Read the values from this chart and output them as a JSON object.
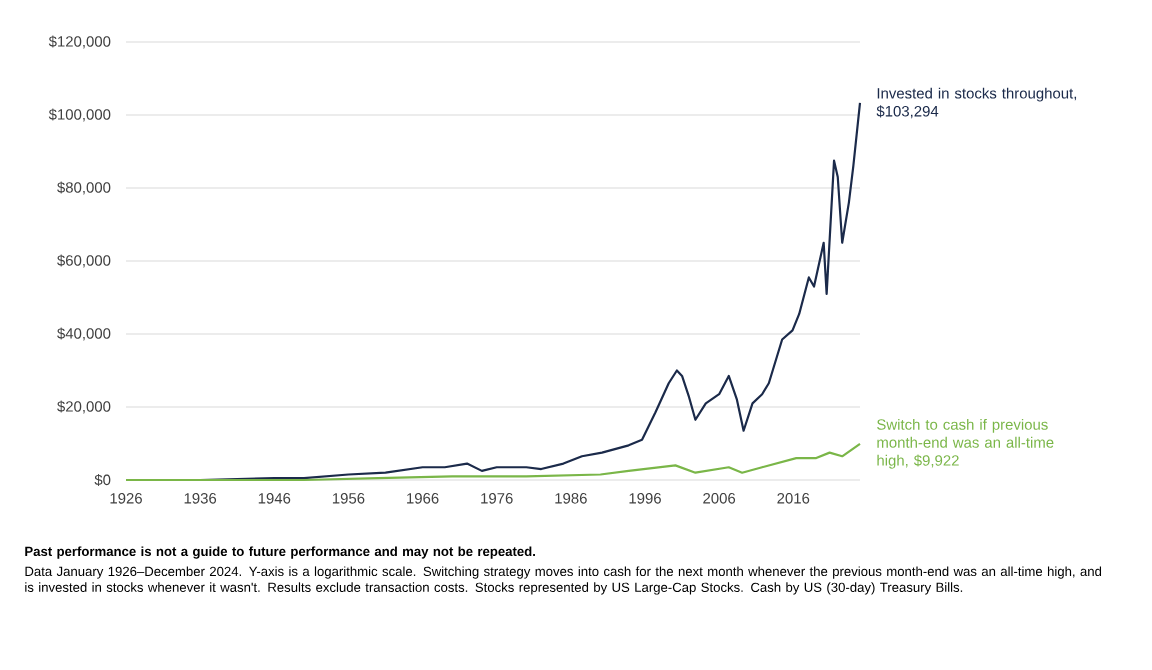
{
  "chart_data": {
    "type": "line",
    "series": [
      {
        "color": "#1b2a4a",
        "x": [
          1926,
          1936,
          1946,
          1950,
          1956,
          1961,
          1966,
          1969,
          1972,
          1974,
          1976,
          1980,
          1982,
          1985,
          1987.5,
          1990.2,
          1993.8,
          1995.6,
          1997.4,
          1999.2,
          2000.3,
          2001,
          2001.9,
          2002.8,
          2004.2,
          2006,
          2007.3,
          2008.4,
          2009.3,
          2010.5,
          2011.8,
          2012.7,
          2014.5,
          2015.9,
          2016.8,
          2018.1,
          2018.8,
          2020.1,
          2020.5,
          2021.5,
          2022,
          2022.6,
          2023.5,
          2024.1,
          2025
        ],
        "values": [
          0,
          0,
          500,
          500,
          1500,
          2000,
          3500,
          3500,
          4500,
          2500,
          3500,
          3500,
          3000,
          4500,
          6500,
          7500,
          9500,
          11000,
          18500,
          26500,
          30000,
          28500,
          23000,
          16500,
          21000,
          23500,
          28500,
          22000,
          13500,
          21000,
          23500,
          26500,
          38500,
          41000,
          45500,
          55500,
          53000,
          65000,
          51000,
          87500,
          83000,
          65000,
          76000,
          86000,
          103294
        ]
      },
      {
        "color": "#7ab648",
        "x": [
          1926,
          1950,
          1960,
          1970,
          1980,
          1990,
          1993.8,
          2000.1,
          2002.8,
          2007.3,
          2009.1,
          2011.8,
          2016.4,
          2019.1,
          2020.9,
          2022.6,
          2025
        ],
        "values": [
          0,
          0,
          500,
          1000,
          1000,
          1500,
          2500,
          4000,
          2000,
          3500,
          2000,
          3500,
          6000,
          6000,
          7500,
          6500,
          9922
        ]
      }
    ],
    "xlim": [
      1926,
      2025
    ],
    "xticks": [
      1926,
      1936,
      1946,
      1956,
      1966,
      1976,
      1986,
      1996,
      2006,
      2016
    ],
    "ylim": [
      0,
      120000
    ],
    "yticks": [
      {
        "value": 0,
        "label": "$0"
      },
      {
        "value": 20000,
        "label": "$20,000"
      },
      {
        "value": 40000,
        "label": "$40,000"
      },
      {
        "value": 60000,
        "label": "$60,000"
      },
      {
        "value": 80000,
        "label": "$80,000"
      },
      {
        "value": 100000,
        "label": "$100,000"
      },
      {
        "value": 120000,
        "label": "$120,000"
      }
    ],
    "grid": "y",
    "marker": "none",
    "line_style": "solid",
    "annotations": [
      {
        "text": "Invested in stocks throughout, $103,294",
        "x": 2025,
        "y": 103294
      },
      {
        "text": "Switch to cash if previous month-end was an all-time high, $9,922",
        "x": 2025,
        "y": 9922
      },
      "Past performance is not a guide to future performance and may not be repeated.",
      "Data January 1926–December 2024. Y-axis is a logarithmic scale. Switching strategy moves into cash for the next month whenever the previous month-end was an all-time high, and is invested in stocks whenever it wasn't. Results exclude transaction costs. Stocks represented by US Large-Cap Stocks. Cash by US (30-day) Treasury Bills."
    ]
  }
}
